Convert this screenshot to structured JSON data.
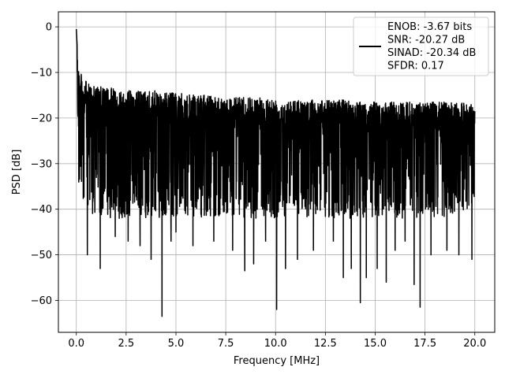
{
  "chart_data": {
    "type": "line",
    "title": "",
    "xlabel": "Frequency [MHz]",
    "ylabel": "PSD [dB]",
    "xlim": [
      -0.9,
      21.0
    ],
    "ylim": [
      -67.0,
      3.3
    ],
    "x_ticks": [
      0.0,
      2.5,
      5.0,
      7.5,
      10.0,
      12.5,
      15.0,
      17.5,
      20.0
    ],
    "x_tick_labels": [
      "0.0",
      "2.5",
      "5.0",
      "7.5",
      "10.0",
      "12.5",
      "15.0",
      "17.5",
      "20.0"
    ],
    "y_ticks": [
      0,
      -10,
      -20,
      -30,
      -40,
      -50,
      -60
    ],
    "y_tick_labels": [
      "0",
      "−10",
      "−20",
      "−30",
      "−40",
      "−50",
      "−60"
    ],
    "grid": true,
    "legend_position": "top-right",
    "legend_entries": [
      "ENOB: -3.67 bits",
      "SNR: -20.27 dB",
      "SINAD: -20.34 dB",
      "SFDR: 0.17"
    ],
    "series": [
      {
        "color": "#000000",
        "x_start": 0.0,
        "x_end": 20.0,
        "envelope_max": [
          [
            0.0,
            -0.5
          ],
          [
            0.05,
            -5
          ],
          [
            0.15,
            -9
          ],
          [
            0.3,
            -11
          ],
          [
            0.6,
            -12.5
          ],
          [
            1.0,
            -13
          ],
          [
            2.0,
            -13.5
          ],
          [
            3.0,
            -14
          ],
          [
            4.0,
            -14
          ],
          [
            5.0,
            -14.5
          ],
          [
            6.0,
            -15
          ],
          [
            7.0,
            -15
          ],
          [
            8.0,
            -15.5
          ],
          [
            9.0,
            -15.5
          ],
          [
            10.0,
            -15.5
          ],
          [
            11.0,
            -16
          ],
          [
            12.0,
            -16
          ],
          [
            13.0,
            -16
          ],
          [
            14.0,
            -16
          ],
          [
            15.0,
            -16.5
          ],
          [
            16.0,
            -16.5
          ],
          [
            17.0,
            -16.5
          ],
          [
            18.0,
            -16.5
          ],
          [
            19.0,
            -16.5
          ],
          [
            20.0,
            -17
          ]
        ],
        "envelope_min": [
          [
            0.0,
            -3
          ],
          [
            0.1,
            -30
          ],
          [
            0.3,
            -35
          ],
          [
            1.0,
            -38
          ],
          [
            3.0,
            -38
          ],
          [
            6.0,
            -38
          ],
          [
            10.0,
            -38
          ],
          [
            14.0,
            -38
          ],
          [
            18.0,
            -38
          ],
          [
            20.0,
            -37
          ]
        ],
        "deep_notches": [
          [
            0.55,
            -50
          ],
          [
            1.2,
            -53
          ],
          [
            1.95,
            -46
          ],
          [
            2.6,
            -47
          ],
          [
            3.2,
            -48
          ],
          [
            3.75,
            -51
          ],
          [
            4.3,
            -63.5
          ],
          [
            4.75,
            -47
          ],
          [
            5.0,
            -45
          ],
          [
            5.85,
            -48
          ],
          [
            6.9,
            -47
          ],
          [
            7.85,
            -49
          ],
          [
            8.45,
            -53.5
          ],
          [
            8.9,
            -52
          ],
          [
            9.5,
            -47
          ],
          [
            10.05,
            -62
          ],
          [
            10.5,
            -53
          ],
          [
            11.1,
            -51
          ],
          [
            11.9,
            -49
          ],
          [
            12.9,
            -47
          ],
          [
            13.4,
            -55
          ],
          [
            13.8,
            -53
          ],
          [
            14.25,
            -60.5
          ],
          [
            14.55,
            -55
          ],
          [
            15.1,
            -53
          ],
          [
            15.55,
            -56
          ],
          [
            16.0,
            -49
          ],
          [
            16.5,
            -47
          ],
          [
            16.95,
            -56.5
          ],
          [
            17.25,
            -61.5
          ],
          [
            17.8,
            -50
          ],
          [
            18.6,
            -49
          ],
          [
            19.2,
            -50
          ],
          [
            19.85,
            -51
          ]
        ]
      }
    ]
  }
}
